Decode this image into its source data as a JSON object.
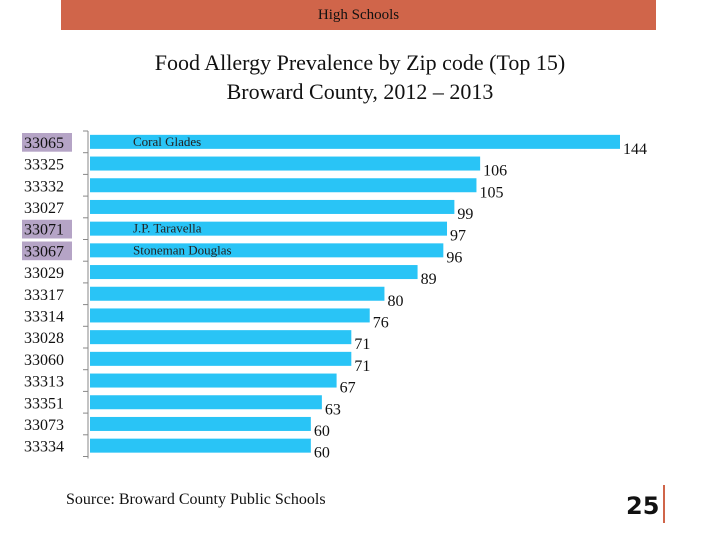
{
  "banner": {
    "label": "High Schools"
  },
  "chart_data": {
    "type": "bar",
    "orientation": "horizontal",
    "title": "Food Allergy Prevalence by Zip code (Top 15)",
    "subtitle": "Broward County, 2012 – 2013",
    "categories": [
      "33065",
      "33325",
      "33332",
      "33027",
      "33071",
      "33067",
      "33029",
      "33317",
      "33314",
      "33028",
      "33060",
      "33313",
      "33351",
      "33073",
      "33334"
    ],
    "values": [
      144,
      106,
      105,
      99,
      97,
      96,
      89,
      80,
      76,
      71,
      71,
      67,
      63,
      60,
      60
    ],
    "bar_labels": [
      "Coral Glades",
      "",
      "",
      "",
      "J.P. Taravella",
      "Stoneman Douglas",
      "",
      "",
      "",
      "",
      "",
      "",
      "",
      "",
      ""
    ],
    "highlighted": [
      "33065",
      "33071",
      "33067"
    ],
    "data_labels": true,
    "grid": false,
    "colors": {
      "bar": "#29c4f6",
      "highlight": "#b5a4c6",
      "axis": "#888888"
    }
  },
  "footer": {
    "source": "Source: Broward County Public Schools",
    "page_number": "25"
  }
}
